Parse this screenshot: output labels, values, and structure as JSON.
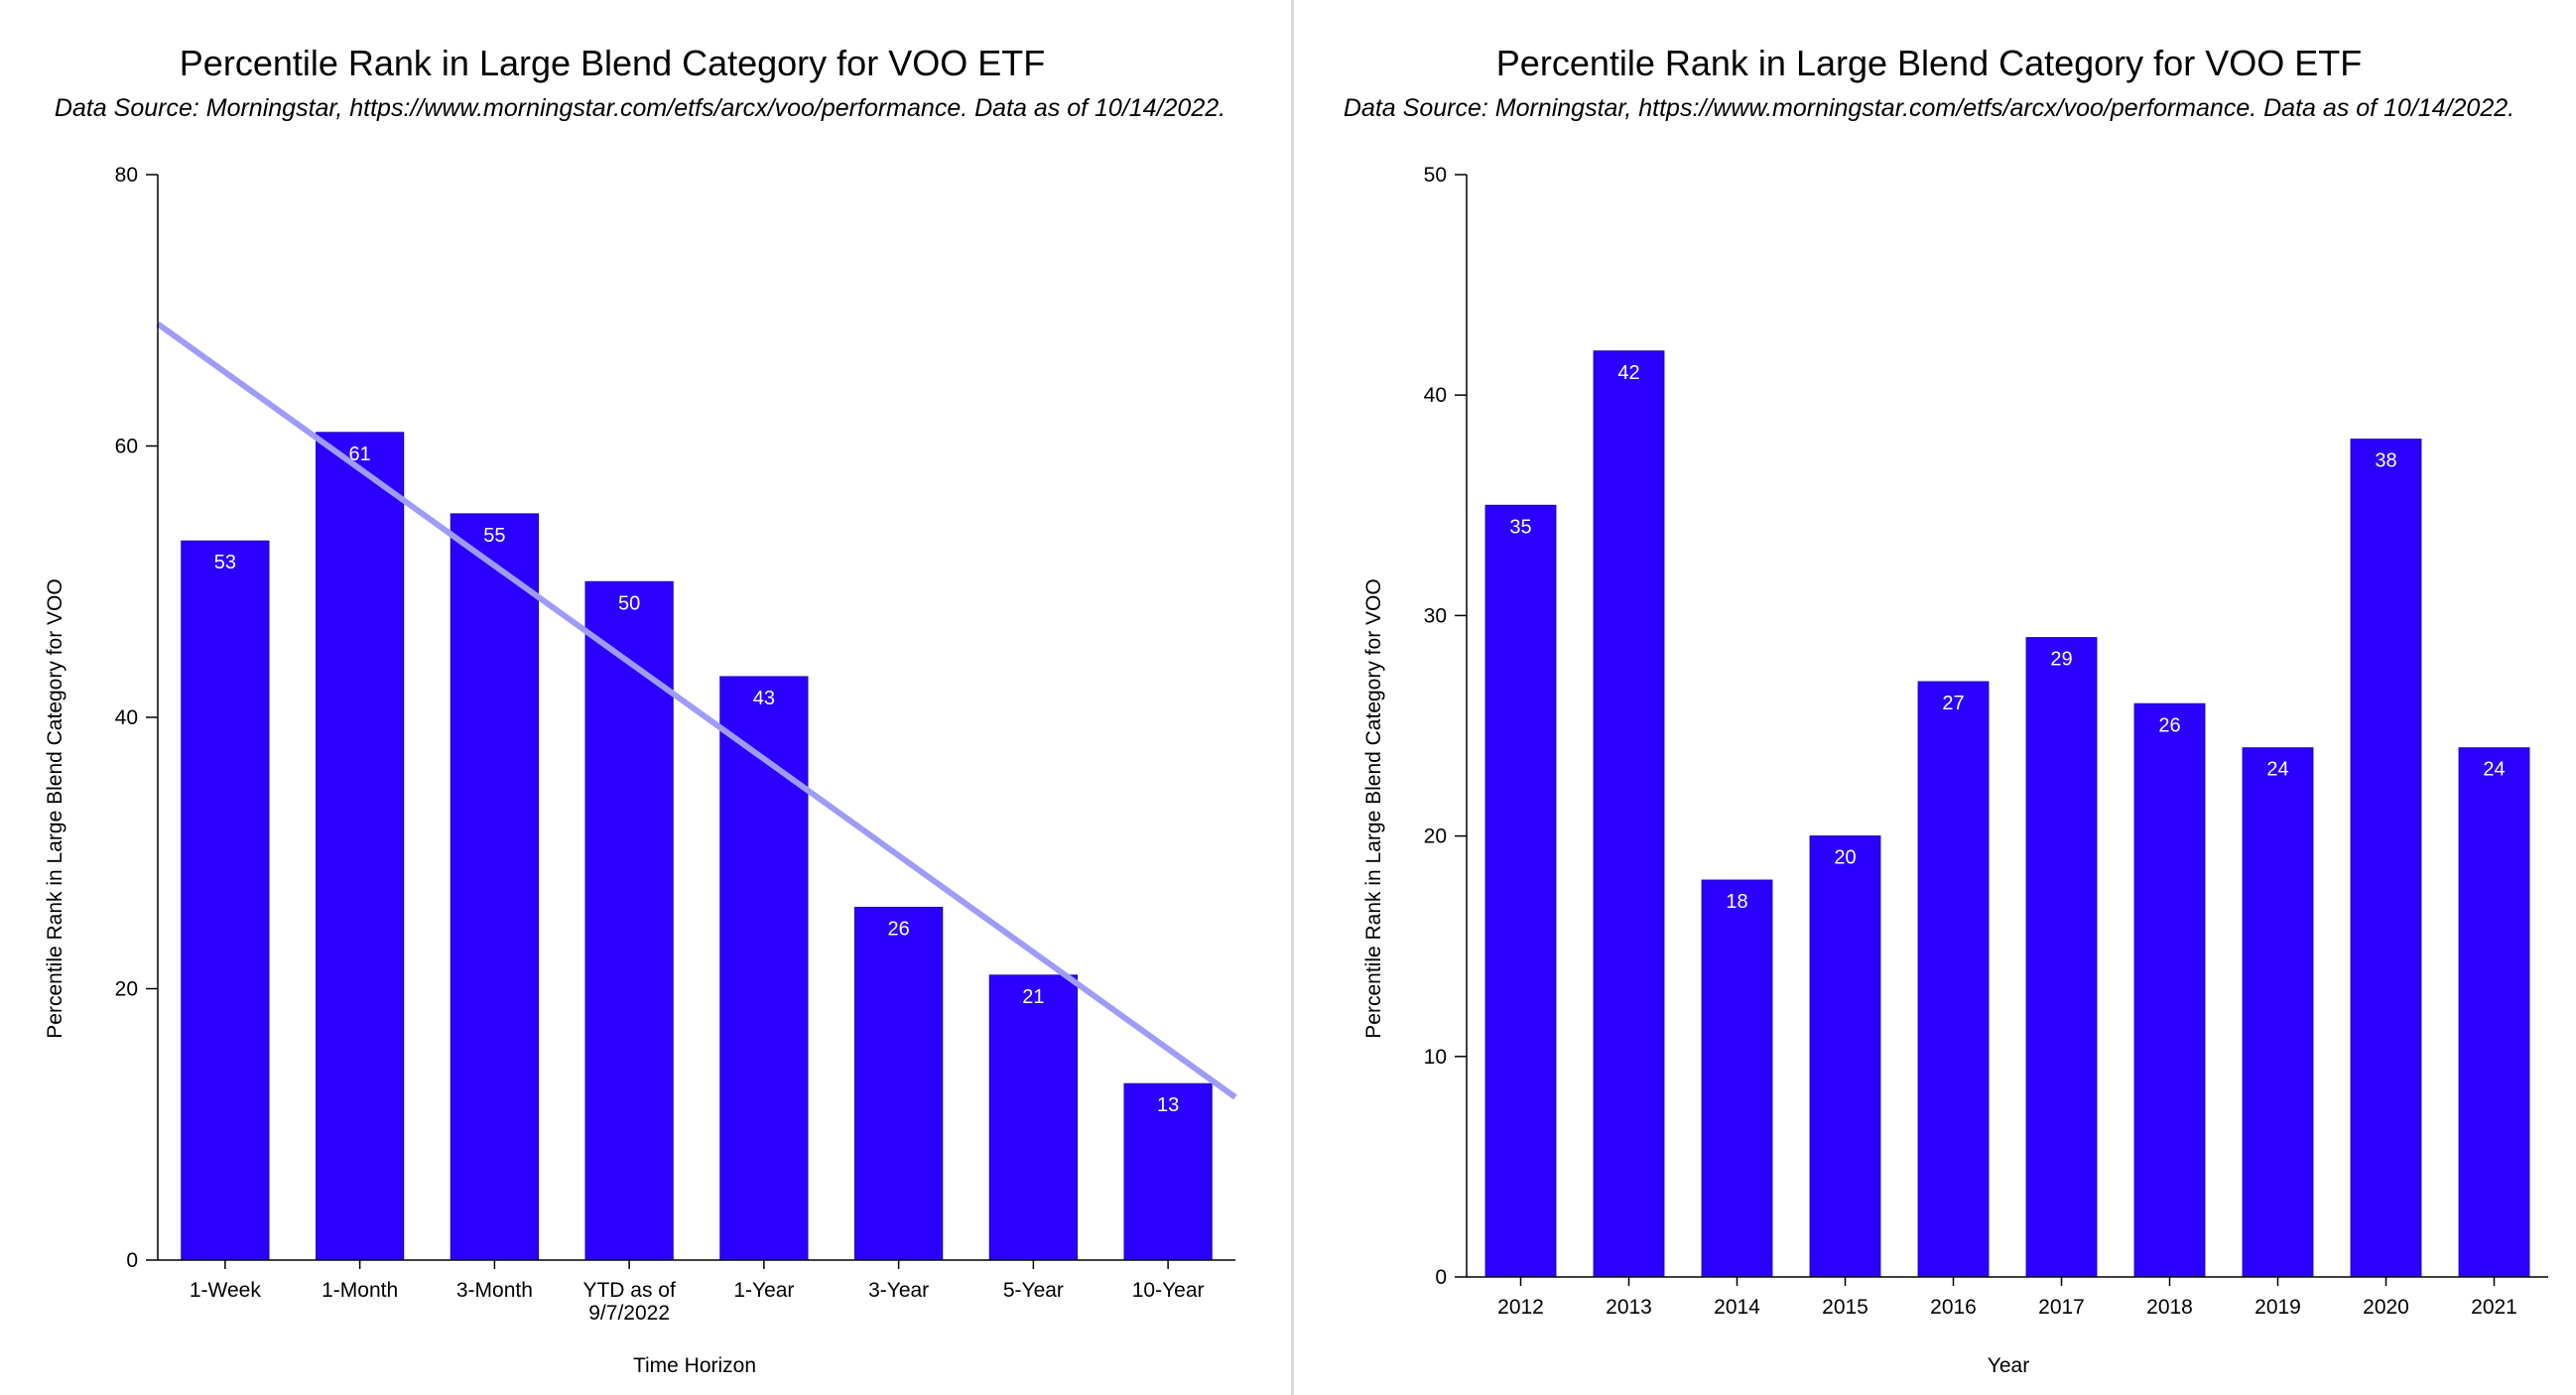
{
  "chart_data": [
    {
      "type": "bar",
      "title": "Percentile Rank in Large Blend Category for VOO ETF",
      "subtitle": "Data Source: Morningstar, https://www.morningstar.com/etfs/arcx/voo/performance. Data as of 10/14/2022.",
      "xlabel": "Time Horizon",
      "ylabel": "Percentile Rank in Large Blend Category for VOO",
      "categories": [
        "1-Week",
        "1-Month",
        "3-Month",
        "YTD as of\n9/7/2022",
        "1-Year",
        "3-Year",
        "5-Year",
        "10-Year"
      ],
      "values": [
        53,
        61,
        55,
        50,
        43,
        26,
        21,
        13
      ],
      "ylim": [
        0,
        80
      ],
      "yticks": [
        0,
        20,
        40,
        60,
        80
      ],
      "trendline": {
        "start": 69,
        "end": 12
      },
      "grid": false,
      "colors": {
        "bar": "#2b00ff",
        "trendline": "#9e9cf8",
        "bar_label": "#ffffff"
      }
    },
    {
      "type": "bar",
      "title": "Percentile Rank in Large Blend Category for VOO ETF",
      "subtitle": "Data Source: Morningstar, https://www.morningstar.com/etfs/arcx/voo/performance. Data as of 10/14/2022.",
      "xlabel": "Year",
      "ylabel": "Percentile Rank in Large Blend Category for VOO",
      "categories": [
        "2012",
        "2013",
        "2014",
        "2015",
        "2016",
        "2017",
        "2018",
        "2019",
        "2020",
        "2021"
      ],
      "values": [
        35,
        42,
        18,
        20,
        27,
        29,
        26,
        24,
        38,
        24
      ],
      "ylim": [
        0,
        50
      ],
      "yticks": [
        0,
        10,
        20,
        30,
        40,
        50
      ],
      "grid": false,
      "colors": {
        "bar": "#2b00ff",
        "bar_label": "#ffffff"
      }
    }
  ]
}
